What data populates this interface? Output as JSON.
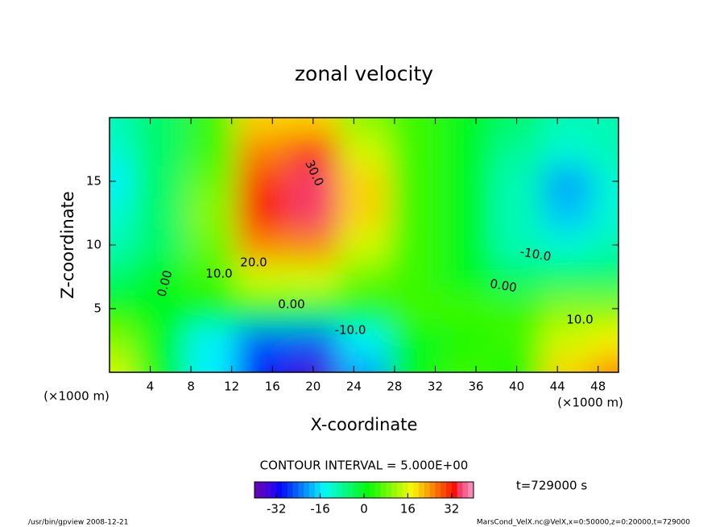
{
  "chart_data": {
    "type": "contour",
    "title": "zonal velocity",
    "x_label": "X-coordinate",
    "y_label": "Z-coordinate",
    "x_unit_label": "(×1000 m)",
    "x": [
      0,
      5,
      10,
      15,
      20,
      25,
      30,
      35,
      40,
      45,
      50
    ],
    "y": [
      0,
      2.5,
      5,
      7.5,
      10,
      12.5,
      15,
      17.5,
      20
    ],
    "values": [
      [
        15,
        0,
        -15,
        -30,
        -35,
        -20,
        0,
        5,
        3,
        20,
        25
      ],
      [
        10,
        0,
        -15,
        -25,
        -25,
        -15,
        0,
        3,
        5,
        15,
        18
      ],
      [
        2,
        0,
        0,
        0,
        -2,
        0,
        5,
        5,
        5,
        10,
        10
      ],
      [
        -5,
        0,
        5,
        15,
        15,
        8,
        5,
        0,
        -5,
        -5,
        -5
      ],
      [
        -10,
        -5,
        8,
        25,
        25,
        15,
        5,
        0,
        -10,
        -12,
        -10
      ],
      [
        -12,
        -5,
        10,
        32,
        35,
        20,
        5,
        0,
        -10,
        -18,
        -12
      ],
      [
        -15,
        -5,
        8,
        30,
        35,
        20,
        5,
        0,
        -10,
        -20,
        -12
      ],
      [
        -12,
        -5,
        5,
        25,
        30,
        15,
        5,
        0,
        -8,
        -12,
        -10
      ],
      [
        -10,
        -5,
        5,
        20,
        20,
        10,
        5,
        0,
        -5,
        -10,
        -10
      ]
    ],
    "xlim": [
      0,
      50
    ],
    "ylim": [
      0,
      20
    ],
    "xticks": [
      4,
      8,
      12,
      16,
      20,
      24,
      28,
      32,
      36,
      40,
      44,
      48
    ],
    "yticks": [
      5,
      10,
      15
    ],
    "contour_labels": [
      "30.0",
      "20.0",
      "10.0",
      "0.00",
      "0.00",
      "-10.0",
      "0.00",
      "-10.0",
      "10.0"
    ],
    "contour_interval_label": "CONTOUR INTERVAL = 5.000E+00",
    "colorbar_lim": [
      -40,
      40
    ],
    "colorbar_ticks": [
      -32,
      -16,
      0,
      16,
      32
    ],
    "time_label": "t=729000 s",
    "footer_left": "/usr/bin/gpview  2008-12-21",
    "footer_right": "MarsCond_VelX.nc@VelX,x=0:50000,z=0:20000,t=729000"
  }
}
